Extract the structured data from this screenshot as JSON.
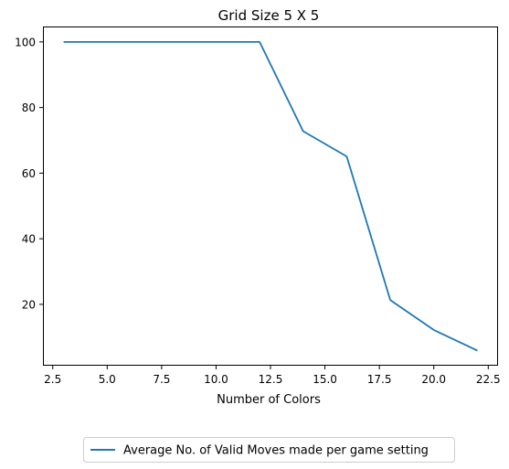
{
  "chart_data": {
    "type": "line",
    "title": "Grid Size 5 X 5",
    "xlabel": "Number of Colors",
    "ylabel": "",
    "xlim": [
      2.05,
      22.95
    ],
    "ylim": [
      1.3,
      104.7
    ],
    "xticks": [
      2.5,
      5.0,
      7.5,
      10.0,
      12.5,
      15.0,
      17.5,
      20.0,
      22.5
    ],
    "xtick_labels": [
      "2.5",
      "5.0",
      "7.5",
      "10.0",
      "12.5",
      "15.0",
      "17.5",
      "20.0",
      "22.5"
    ],
    "yticks": [
      20,
      40,
      60,
      80,
      100
    ],
    "ytick_labels": [
      "20",
      "40",
      "60",
      "80",
      "100"
    ],
    "grid": false,
    "legend_position": "below the plot, centered",
    "series": [
      {
        "name": "Average No. of Valid Moves made per game setting",
        "color": "#1f77b4",
        "x": [
          3,
          12,
          14,
          16,
          18,
          20,
          22
        ],
        "y": [
          100,
          100,
          72.8,
          65.1,
          21.3,
          12.2,
          5.9
        ]
      }
    ]
  }
}
